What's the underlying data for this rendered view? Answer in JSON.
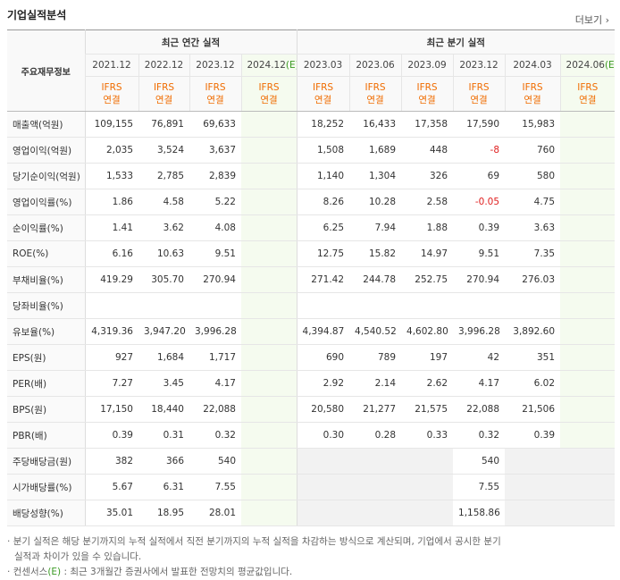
{
  "header": {
    "title": "기업실적분석",
    "more": "더보기"
  },
  "table": {
    "corner": "주요재무정보",
    "groups": [
      "최근 연간 실적",
      "최근 분기 실적"
    ],
    "columns": [
      {
        "period": "2021.12",
        "standard": "IFRS",
        "scope": "연결"
      },
      {
        "period": "2022.12",
        "standard": "IFRS",
        "scope": "연결"
      },
      {
        "period": "2023.12",
        "standard": "IFRS",
        "scope": "연결"
      },
      {
        "period": "2024.12",
        "estimate": "(E)",
        "standard": "IFRS",
        "scope": "연결"
      },
      {
        "period": "2023.03",
        "standard": "IFRS",
        "scope": "연결"
      },
      {
        "period": "2023.06",
        "standard": "IFRS",
        "scope": "연결"
      },
      {
        "period": "2023.09",
        "standard": "IFRS",
        "scope": "연결"
      },
      {
        "period": "2023.12",
        "standard": "IFRS",
        "scope": "연결"
      },
      {
        "period": "2024.03",
        "standard": "IFRS",
        "scope": "연결"
      },
      {
        "period": "2024.06",
        "estimate": "(E)",
        "standard": "IFRS",
        "scope": "연결"
      }
    ],
    "rows": [
      {
        "label": "매출액(억원)",
        "values": [
          "109,155",
          "76,891",
          "69,633",
          null,
          "18,252",
          "16,433",
          "17,358",
          "17,590",
          "15,983",
          null
        ]
      },
      {
        "label": "영업이익(억원)",
        "values": [
          "2,035",
          "3,524",
          "3,637",
          null,
          "1,508",
          "1,689",
          "448",
          "-8",
          "760",
          null
        ]
      },
      {
        "label": "당기순이익(억원)",
        "values": [
          "1,533",
          "2,785",
          "2,839",
          null,
          "1,140",
          "1,304",
          "326",
          "69",
          "580",
          null
        ]
      },
      {
        "label": "영업이익률(%)",
        "values": [
          "1.86",
          "4.58",
          "5.22",
          null,
          "8.26",
          "10.28",
          "2.58",
          "-0.05",
          "4.75",
          null
        ]
      },
      {
        "label": "순이익률(%)",
        "values": [
          "1.41",
          "3.62",
          "4.08",
          null,
          "6.25",
          "7.94",
          "1.88",
          "0.39",
          "3.63",
          null
        ]
      },
      {
        "label": "ROE(%)",
        "values": [
          "6.16",
          "10.63",
          "9.51",
          null,
          "12.75",
          "15.82",
          "14.97",
          "9.51",
          "7.35",
          null
        ]
      },
      {
        "label": "부채비율(%)",
        "values": [
          "419.29",
          "305.70",
          "270.94",
          null,
          "271.42",
          "244.78",
          "252.75",
          "270.94",
          "276.03",
          null
        ]
      },
      {
        "label": "당좌비율(%)",
        "values": [
          null,
          null,
          null,
          null,
          null,
          null,
          null,
          null,
          null,
          null
        ]
      },
      {
        "label": "유보율(%)",
        "values": [
          "4,319.36",
          "3,947.20",
          "3,996.28",
          null,
          "4,394.87",
          "4,540.52",
          "4,602.80",
          "3,996.28",
          "3,892.60",
          null
        ]
      },
      {
        "label": "EPS(원)",
        "values": [
          "927",
          "1,684",
          "1,717",
          null,
          "690",
          "789",
          "197",
          "42",
          "351",
          null
        ]
      },
      {
        "label": "PER(배)",
        "values": [
          "7.27",
          "3.45",
          "4.17",
          null,
          "2.92",
          "2.14",
          "2.62",
          "4.17",
          "6.02",
          null
        ]
      },
      {
        "label": "BPS(원)",
        "values": [
          "17,150",
          "18,440",
          "22,088",
          null,
          "20,580",
          "21,277",
          "21,575",
          "22,088",
          "21,506",
          null
        ]
      },
      {
        "label": "PBR(배)",
        "values": [
          "0.39",
          "0.31",
          "0.32",
          null,
          "0.30",
          "0.28",
          "0.33",
          "0.32",
          "0.39",
          null
        ]
      },
      {
        "label": "주당배당금(원)",
        "values": [
          "382",
          "366",
          "540",
          null,
          null,
          null,
          null,
          "540",
          null,
          null
        ]
      },
      {
        "label": "시가배당률(%)",
        "values": [
          "5.67",
          "6.31",
          "7.55",
          null,
          null,
          null,
          null,
          "7.55",
          null,
          null
        ]
      },
      {
        "label": "배당성향(%)",
        "values": [
          "35.01",
          "18.95",
          "28.01",
          null,
          null,
          null,
          null,
          "1,158.86",
          null,
          null
        ]
      }
    ]
  },
  "notes": [
    {
      "text": "분기 실적은 해당 분기까지의 누적 실적에서 직전 분기까지의 누적 실적을 차감하는 방식으로 계산되며, 기업에서 공시한 분기 실적과 차이가 있을 수 있습니다."
    },
    {
      "prefix": "컨센서스",
      "mark": "(E)",
      "text": " : 최근 3개월간 증권사에서 발표한 전망치의 평균값입니다."
    }
  ]
}
